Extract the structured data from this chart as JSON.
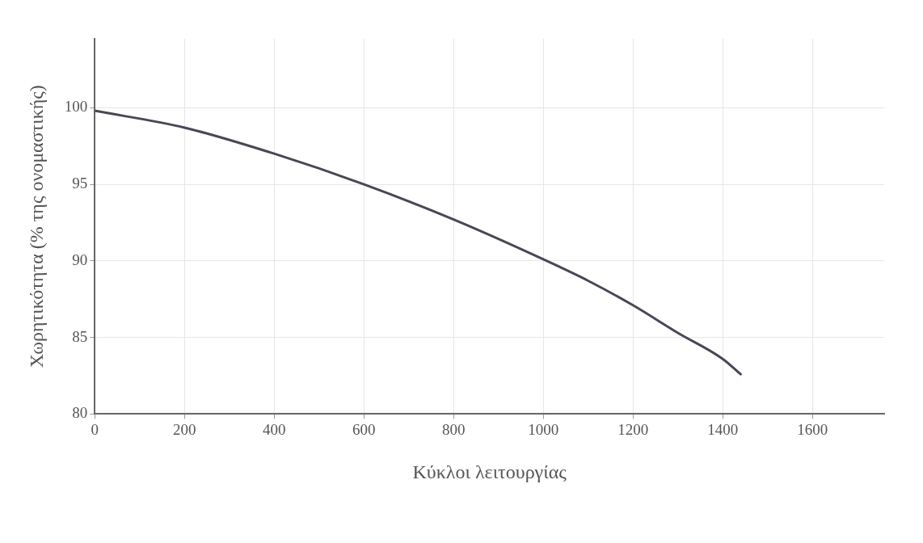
{
  "chart_data": {
    "type": "line",
    "xlabel": "Κύκλοι λειτουργίας",
    "ylabel": "Χωρητικότητα (% της ονομαστικής)",
    "x": [
      0,
      200,
      400,
      600,
      800,
      1000,
      1100,
      1200,
      1300,
      1400,
      1440
    ],
    "series": [
      {
        "color": "#4a4656",
        "values": [
          99.8,
          98.7,
          97.0,
          95.0,
          92.7,
          90.1,
          88.7,
          87.1,
          85.3,
          83.6,
          82.6
        ]
      }
    ],
    "xlim": [
      0,
      1760
    ],
    "ylim": [
      80,
      104.5
    ],
    "xticks": [
      0,
      200,
      400,
      600,
      800,
      1000,
      1200,
      1400,
      1600
    ],
    "yticks": [
      80,
      85,
      90,
      95,
      100
    ],
    "grid": true,
    "legend": false,
    "marker": "none",
    "line_style": "solid"
  }
}
